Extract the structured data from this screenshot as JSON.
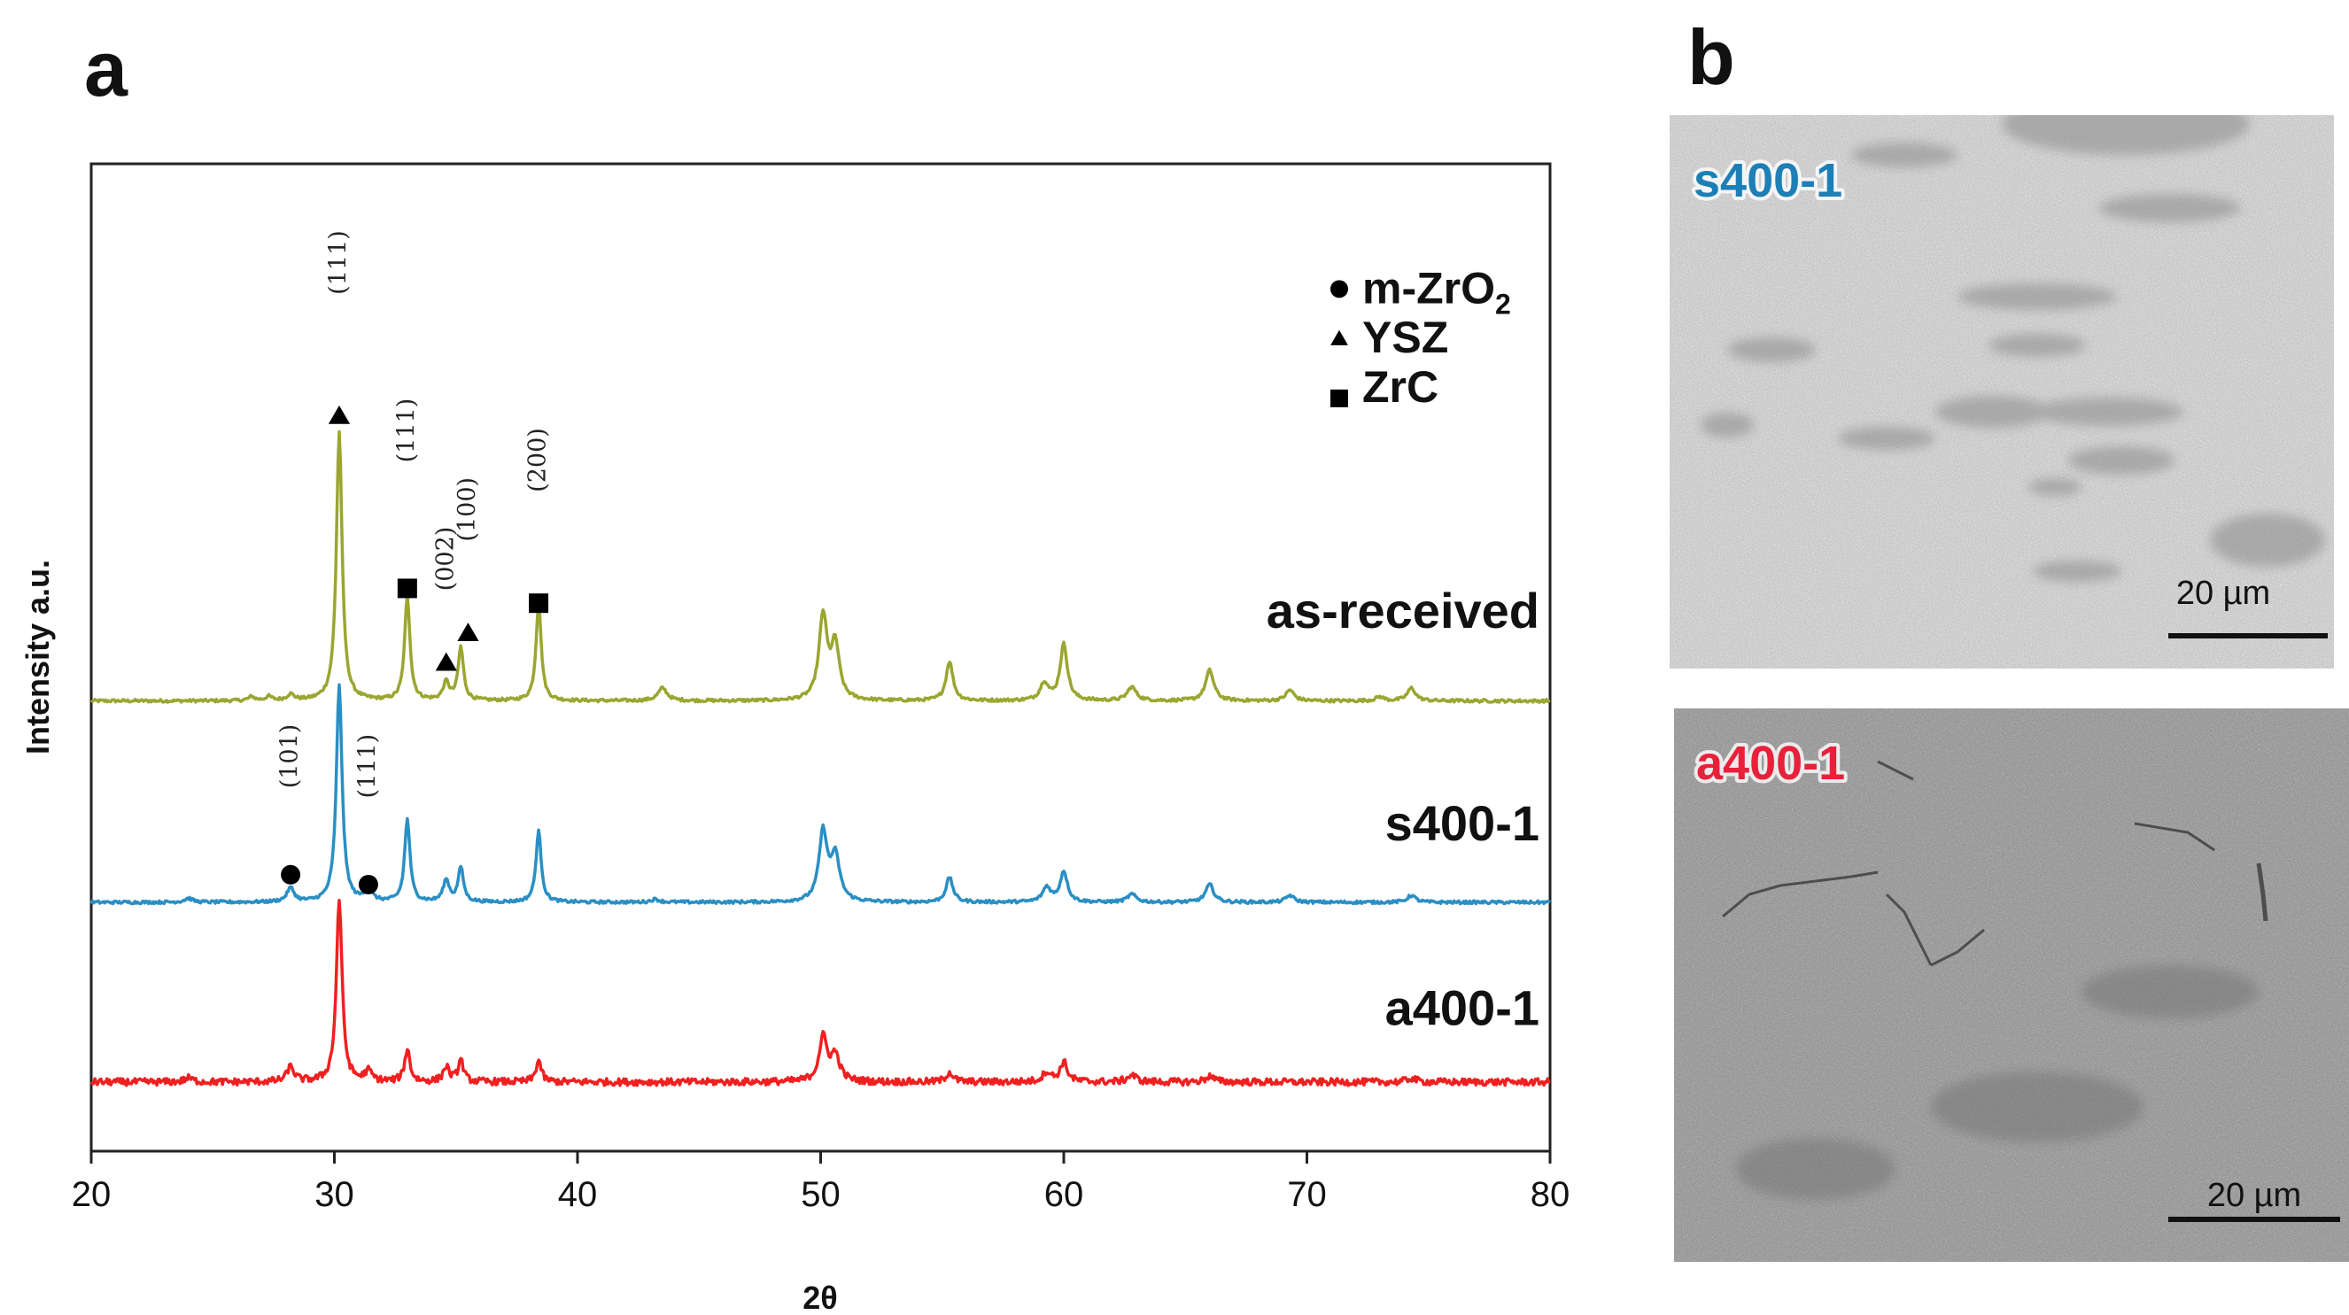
{
  "panels": {
    "a": "a",
    "b": "b"
  },
  "chart_data": {
    "type": "line",
    "title": "",
    "xlabel": "2θ",
    "ylabel": "Intensity a.u.",
    "xlim": [
      20,
      80
    ],
    "xticks": [
      20,
      30,
      40,
      50,
      60,
      70,
      80
    ],
    "ylim": [
      0,
      1
    ],
    "yticks_shown": false,
    "grid": false,
    "series": [
      {
        "name": "as-received",
        "color": "#9aa631",
        "baseline": 0.456,
        "noise": 0.0015,
        "peaks": [
          {
            "x": 26.6,
            "h": 0.004,
            "w": 0.15
          },
          {
            "x": 27.3,
            "h": 0.004,
            "w": 0.15
          },
          {
            "x": 28.2,
            "h": 0.006,
            "w": 0.18
          },
          {
            "x": 30.2,
            "h": 0.272,
            "w": 0.14
          },
          {
            "x": 33.0,
            "h": 0.106,
            "w": 0.13
          },
          {
            "x": 34.6,
            "h": 0.018,
            "w": 0.15
          },
          {
            "x": 35.2,
            "h": 0.054,
            "w": 0.13
          },
          {
            "x": 38.4,
            "h": 0.098,
            "w": 0.13
          },
          {
            "x": 43.5,
            "h": 0.013,
            "w": 0.22
          },
          {
            "x": 50.1,
            "h": 0.085,
            "w": 0.2
          },
          {
            "x": 50.6,
            "h": 0.055,
            "w": 0.2
          },
          {
            "x": 55.3,
            "h": 0.04,
            "w": 0.17
          },
          {
            "x": 59.2,
            "h": 0.018,
            "w": 0.2
          },
          {
            "x": 60.0,
            "h": 0.057,
            "w": 0.18
          },
          {
            "x": 62.8,
            "h": 0.014,
            "w": 0.22
          },
          {
            "x": 66.0,
            "h": 0.031,
            "w": 0.2
          },
          {
            "x": 69.3,
            "h": 0.011,
            "w": 0.2
          },
          {
            "x": 73.0,
            "h": 0.004,
            "w": 0.2
          },
          {
            "x": 74.3,
            "h": 0.013,
            "w": 0.2
          }
        ]
      },
      {
        "name": "s400-1",
        "color": "#2a8fc4",
        "baseline": 0.252,
        "noise": 0.0015,
        "peaks": [
          {
            "x": 24.0,
            "h": 0.004,
            "w": 0.2
          },
          {
            "x": 28.2,
            "h": 0.014,
            "w": 0.18
          },
          {
            "x": 30.2,
            "h": 0.22,
            "w": 0.14
          },
          {
            "x": 31.4,
            "h": 0.012,
            "w": 0.18
          },
          {
            "x": 33.0,
            "h": 0.084,
            "w": 0.13
          },
          {
            "x": 34.6,
            "h": 0.022,
            "w": 0.15
          },
          {
            "x": 35.2,
            "h": 0.035,
            "w": 0.13
          },
          {
            "x": 38.4,
            "h": 0.072,
            "w": 0.13
          },
          {
            "x": 43.2,
            "h": 0.003,
            "w": 0.2
          },
          {
            "x": 50.1,
            "h": 0.07,
            "w": 0.2
          },
          {
            "x": 50.6,
            "h": 0.045,
            "w": 0.22
          },
          {
            "x": 55.3,
            "h": 0.025,
            "w": 0.17
          },
          {
            "x": 59.3,
            "h": 0.015,
            "w": 0.2
          },
          {
            "x": 60.0,
            "h": 0.031,
            "w": 0.18
          },
          {
            "x": 62.8,
            "h": 0.008,
            "w": 0.22
          },
          {
            "x": 66.0,
            "h": 0.018,
            "w": 0.2
          },
          {
            "x": 69.3,
            "h": 0.007,
            "w": 0.2
          },
          {
            "x": 74.3,
            "h": 0.007,
            "w": 0.2
          }
        ]
      },
      {
        "name": "a400-1",
        "color": "#f02020",
        "baseline": 0.07,
        "noise": 0.0035,
        "peaks": [
          {
            "x": 24.0,
            "h": 0.004,
            "w": 0.2
          },
          {
            "x": 28.2,
            "h": 0.015,
            "w": 0.18
          },
          {
            "x": 30.2,
            "h": 0.185,
            "w": 0.14
          },
          {
            "x": 31.4,
            "h": 0.01,
            "w": 0.18
          },
          {
            "x": 33.0,
            "h": 0.033,
            "w": 0.13
          },
          {
            "x": 34.6,
            "h": 0.015,
            "w": 0.15
          },
          {
            "x": 35.2,
            "h": 0.022,
            "w": 0.13
          },
          {
            "x": 38.4,
            "h": 0.022,
            "w": 0.13
          },
          {
            "x": 50.1,
            "h": 0.044,
            "w": 0.2
          },
          {
            "x": 50.6,
            "h": 0.026,
            "w": 0.22
          },
          {
            "x": 55.3,
            "h": 0.01,
            "w": 0.17
          },
          {
            "x": 59.3,
            "h": 0.01,
            "w": 0.2
          },
          {
            "x": 60.0,
            "h": 0.02,
            "w": 0.18
          },
          {
            "x": 62.8,
            "h": 0.007,
            "w": 0.22
          },
          {
            "x": 66.0,
            "h": 0.006,
            "w": 0.2
          },
          {
            "x": 74.3,
            "h": 0.004,
            "w": 0.2
          }
        ]
      }
    ],
    "legend": {
      "placement": "top-right",
      "entries": [
        {
          "symbol": "circle",
          "label": "m-ZrO",
          "sub": "2"
        },
        {
          "symbol": "triangle",
          "label": "YSZ",
          "sub": ""
        },
        {
          "symbol": "square",
          "label": "ZrC",
          "sub": ""
        }
      ]
    },
    "annotations": [
      {
        "x": 30.2,
        "y": 0.745,
        "marker": "triangle",
        "label": "(111)",
        "label_y": 0.9
      },
      {
        "x": 33.0,
        "y": 0.57,
        "marker": "square",
        "label": "(111)",
        "label_y": 0.73
      },
      {
        "x": 34.6,
        "y": 0.495,
        "marker": "triangle",
        "label": "(002)",
        "label_y": 0.6
      },
      {
        "x": 35.5,
        "y": 0.525,
        "marker": "triangle",
        "label": "(100)",
        "label_y": 0.65
      },
      {
        "x": 38.4,
        "y": 0.555,
        "marker": "square",
        "label": "(200)",
        "label_y": 0.7
      },
      {
        "x": 28.2,
        "y": 0.28,
        "marker": "circle",
        "label": "(101)",
        "label_y": 0.4
      },
      {
        "x": 31.4,
        "y": 0.27,
        "marker": "circle",
        "label": "(111)",
        "label_y": 0.39
      }
    ]
  },
  "sem_images": [
    {
      "label": "s400-1",
      "label_color": "#1d7fb5",
      "scale_bar": "20 µm"
    },
    {
      "label": "a400-1",
      "label_color": "#e8213a",
      "scale_bar": "20 µm"
    }
  ]
}
